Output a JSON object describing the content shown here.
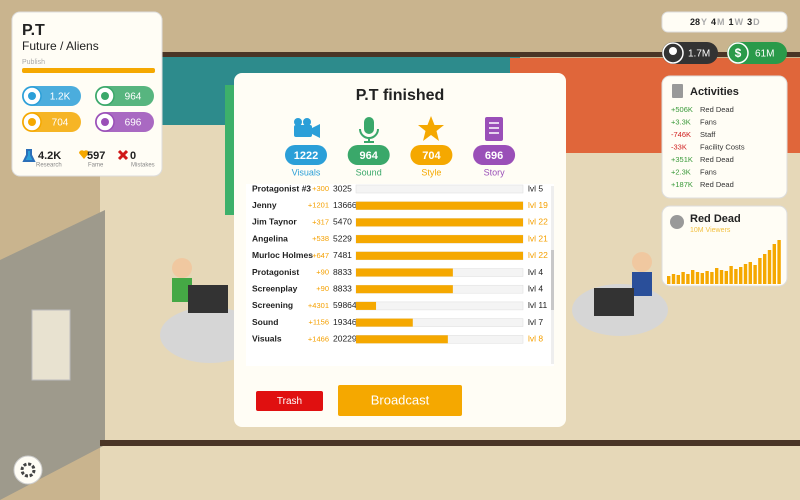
{
  "project": {
    "title": "P.T",
    "genre": "Future / Aliens",
    "status": "Publish",
    "progress": 1,
    "stats": [
      "1.2K",
      964,
      704,
      696
    ],
    "research": {
      "value": "4.2K",
      "label": "Research"
    },
    "fame": {
      "value": 597,
      "label": "Fame"
    },
    "mistakes": {
      "value": 0,
      "label": "Mistakes"
    }
  },
  "date": [
    {
      "value": 28,
      "unit": "Y"
    },
    {
      "value": 4,
      "unit": "M"
    },
    {
      "value": 1,
      "unit": "W"
    },
    {
      "value": 3,
      "unit": "D"
    }
  ],
  "fans": "1.7M",
  "money": "61M",
  "activities": {
    "title": "Activities",
    "items": [
      {
        "amount": "+506K",
        "label": "Red Dead"
      },
      {
        "amount": "+3.3K",
        "label": "Fans"
      },
      {
        "amount": "-746K",
        "label": "Staff"
      },
      {
        "amount": "-33K",
        "label": "Facility Costs"
      },
      {
        "amount": "+351K",
        "label": "Red Dead"
      },
      {
        "amount": "+2.3K",
        "label": "Fans"
      },
      {
        "amount": "+187K",
        "label": "Red Dead"
      }
    ]
  },
  "show": {
    "title": "Red Dead",
    "viewers": "10M Viewers"
  },
  "dialog": {
    "title": "P.T finished",
    "scores": [
      {
        "value": 1222,
        "label": "Visuals",
        "color": "#2b9fd8"
      },
      {
        "value": 964,
        "label": "Sound",
        "color": "#3aa86a"
      },
      {
        "value": 704,
        "label": "Style",
        "color": "#f5a800"
      },
      {
        "value": 696,
        "label": "Story",
        "color": "#9a4fb8"
      }
    ],
    "rows": [
      {
        "name": "Protagonist #3",
        "gain": "+300",
        "value": 3025,
        "progress": 0,
        "level": "lvl 5",
        "highlight": false
      },
      {
        "name": "Jenny",
        "gain": "+1201",
        "value": 13666,
        "progress": 1,
        "level": "lvl 19",
        "highlight": true
      },
      {
        "name": "Jim Taynor",
        "gain": "+317",
        "value": 5470,
        "progress": 1,
        "level": "lvl 22",
        "highlight": true
      },
      {
        "name": "Angelina",
        "gain": "+538",
        "value": 5229,
        "progress": 1,
        "level": "lvl 21",
        "highlight": true
      },
      {
        "name": "Murloc Holmes",
        "gain": "+647",
        "value": 7481,
        "progress": 1,
        "level": "lvl 22",
        "highlight": true
      },
      {
        "name": "Protagonist",
        "gain": "+90",
        "value": 8833,
        "progress": 0.58,
        "level": "lvl 4",
        "highlight": false
      },
      {
        "name": "Screenplay",
        "gain": "+90",
        "value": 8833,
        "progress": 0.58,
        "level": "lvl 4",
        "highlight": false
      },
      {
        "name": "Screening",
        "gain": "+4301",
        "value": 59864,
        "progress": 0.12,
        "level": "lvl 11",
        "highlight": false
      },
      {
        "name": "Sound",
        "gain": "+1156",
        "value": 19346,
        "progress": 0.34,
        "level": "lvl 7",
        "highlight": false
      },
      {
        "name": "Visuals",
        "gain": "+1466",
        "value": 20229,
        "progress": 0.55,
        "level": "lvl 8",
        "highlight": true
      }
    ],
    "trash": "Trash",
    "broadcast": "Broadcast"
  }
}
